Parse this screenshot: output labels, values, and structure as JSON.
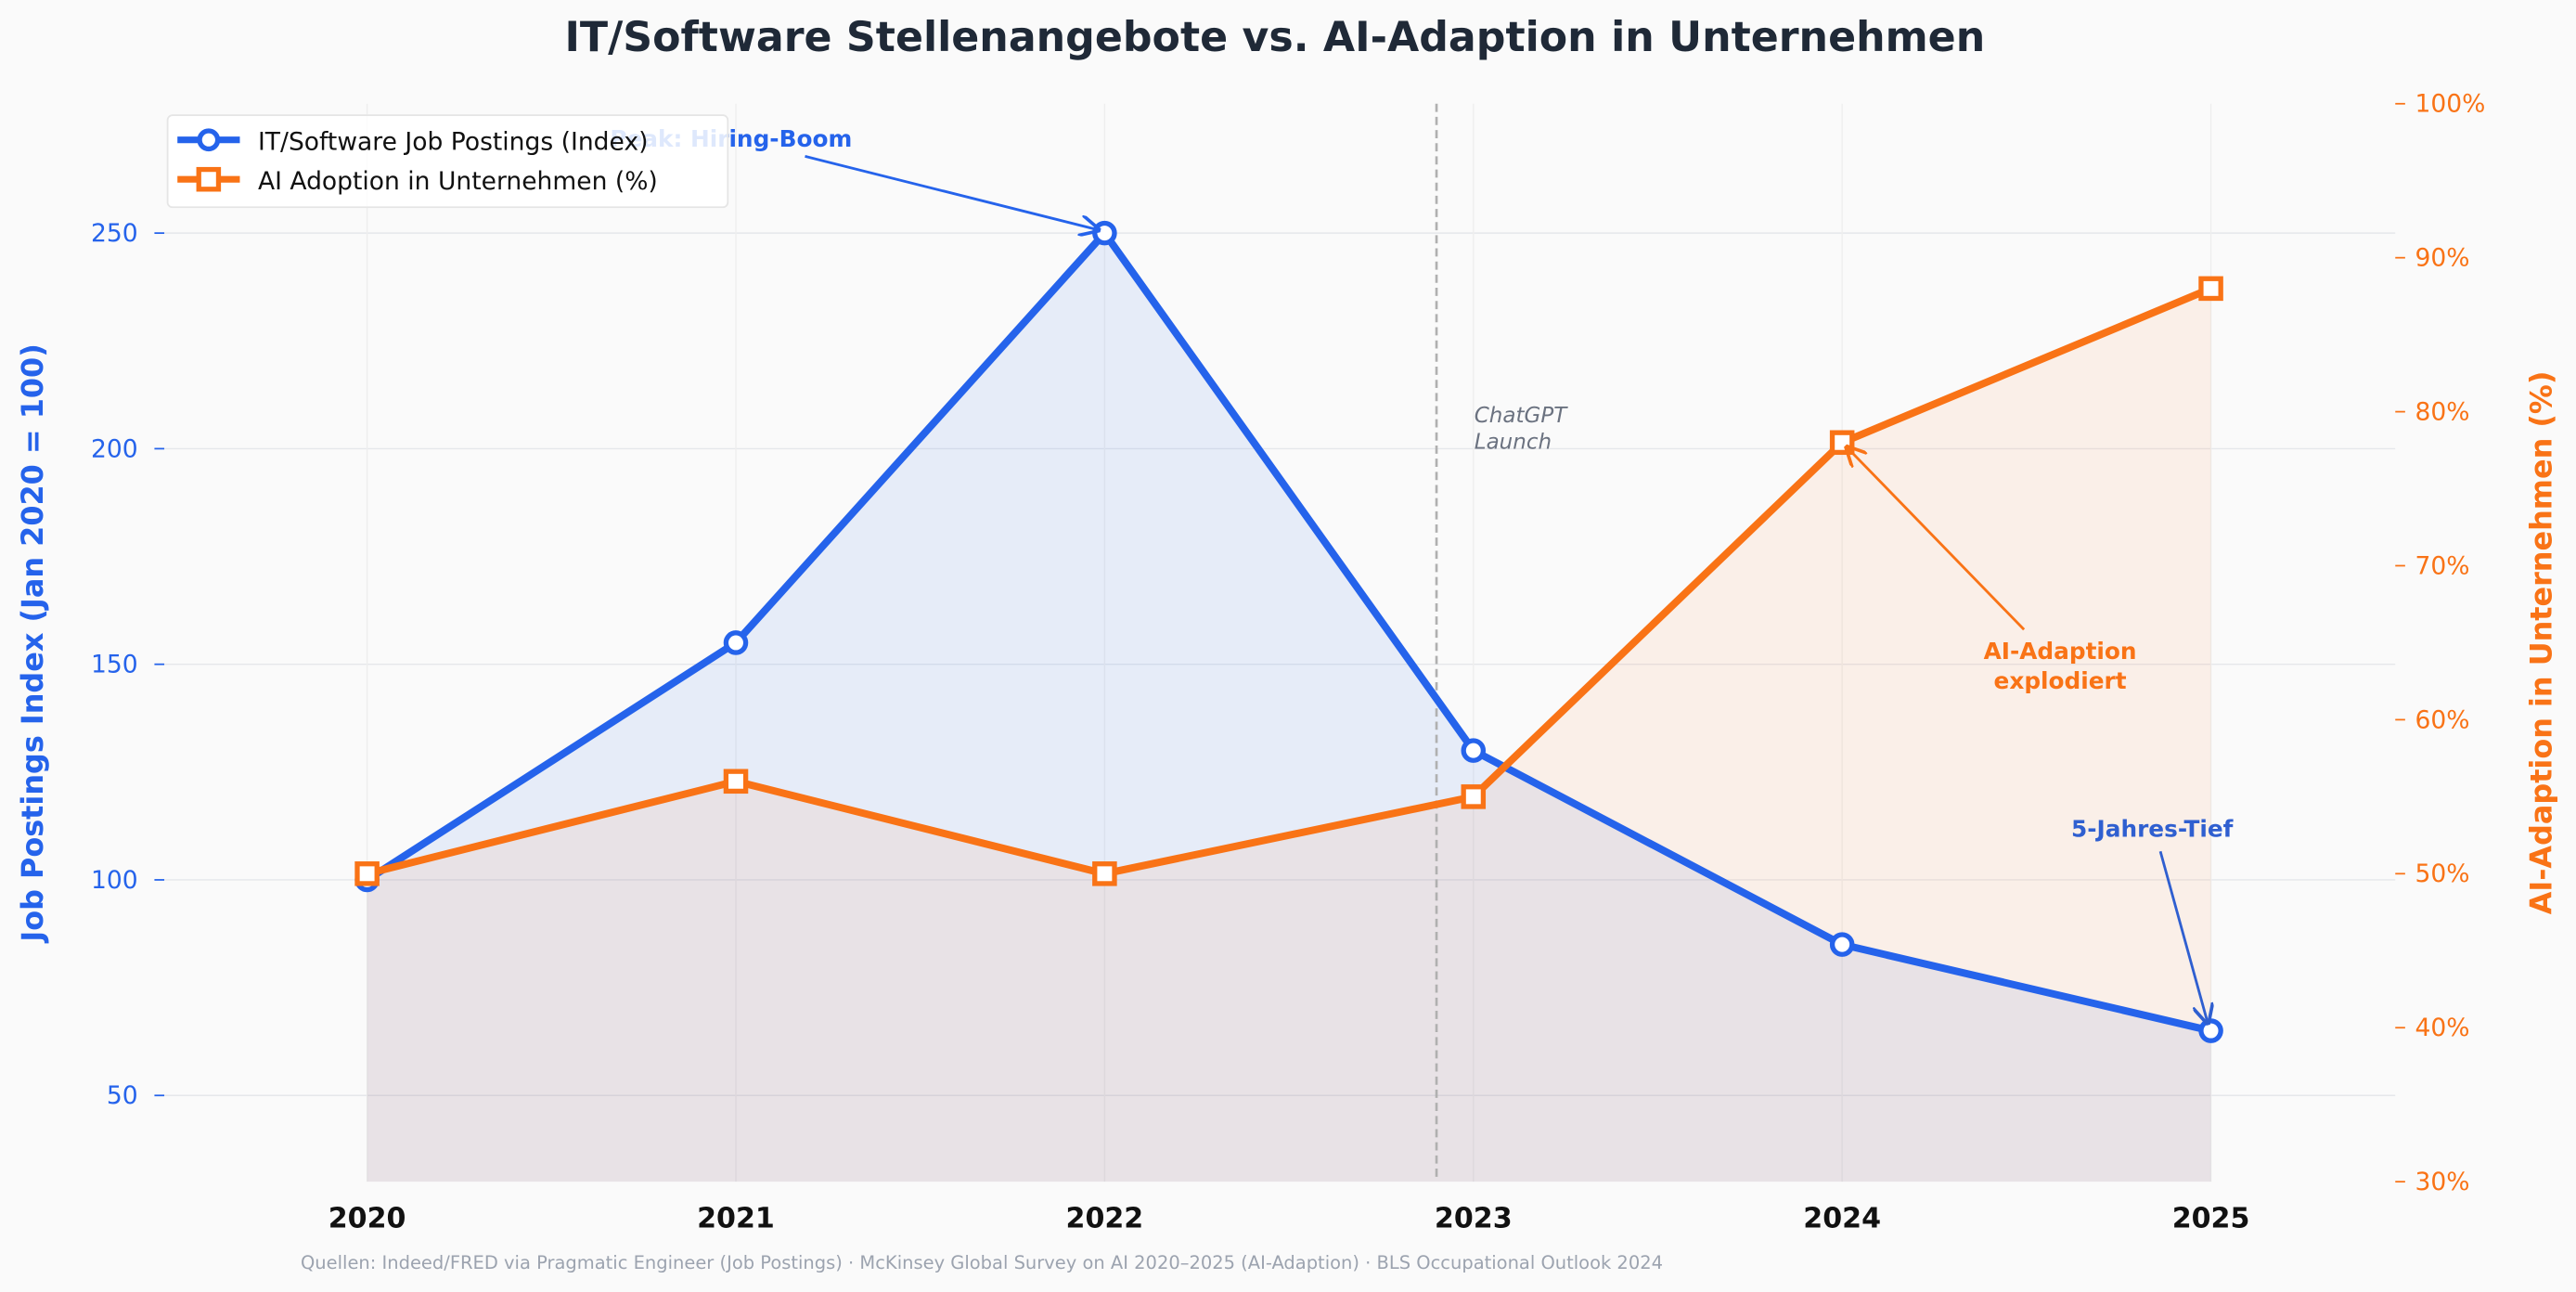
{
  "chart_data": {
    "type": "line",
    "title": "IT/Software Stellenangebote vs. AI-Adaption in Unternehmen",
    "x": [
      2020,
      2021,
      2022,
      2023,
      2024,
      2025
    ],
    "x_tick_labels": [
      "2020",
      "2021",
      "2022",
      "2023",
      "2024",
      "2025"
    ],
    "xlim": [
      2019.45,
      2025.5
    ],
    "y_left": {
      "label": "Job Postings Index (Jan 2020 = 100)",
      "lim": [
        30,
        280
      ],
      "ticks": [
        50,
        100,
        150,
        200,
        250
      ],
      "tick_labels": [
        "50",
        "100",
        "150",
        "200",
        "250"
      ],
      "color": "#2563eb"
    },
    "y_right": {
      "label": "AI-Adaption in Unternehmen (%)",
      "lim": [
        30,
        100
      ],
      "ticks": [
        30,
        40,
        50,
        60,
        70,
        80,
        90,
        100
      ],
      "tick_labels": [
        "30%",
        "40%",
        "50%",
        "60%",
        "70%",
        "80%",
        "90%",
        "100%"
      ],
      "color": "#f97316"
    },
    "series": [
      {
        "name": "IT/Software Job Postings (Index)",
        "axis": "left",
        "marker": "circle",
        "color": "#2563eb",
        "values": [
          100,
          155,
          250,
          130,
          85,
          65
        ]
      },
      {
        "name": "AI Adoption in Unternehmen (%)",
        "axis": "right",
        "marker": "square",
        "color": "#f97316",
        "values": [
          50,
          56,
          50,
          55,
          78,
          88
        ]
      }
    ],
    "vline": {
      "x": 2022.9,
      "label_line1": "ChatGPT",
      "label_line2": "Launch"
    },
    "annotations": {
      "peak": {
        "text": "Peak: Hiring-Boom",
        "x": 2022,
        "y": 250
      },
      "ai": {
        "line1": "AI-Adaption",
        "line2": "explodiert",
        "x": 2024,
        "y": 78
      },
      "low": {
        "text": "5-Jahres-Tief",
        "x": 2025,
        "y": 65
      }
    },
    "legend_position": "top-left",
    "grid": true,
    "source": "Quellen: Indeed/FRED via Pragmatic Engineer (Job Postings) · McKinsey Global Survey on AI 2020–2025 (AI-Adaption) · BLS Occupational Outlook 2024"
  }
}
